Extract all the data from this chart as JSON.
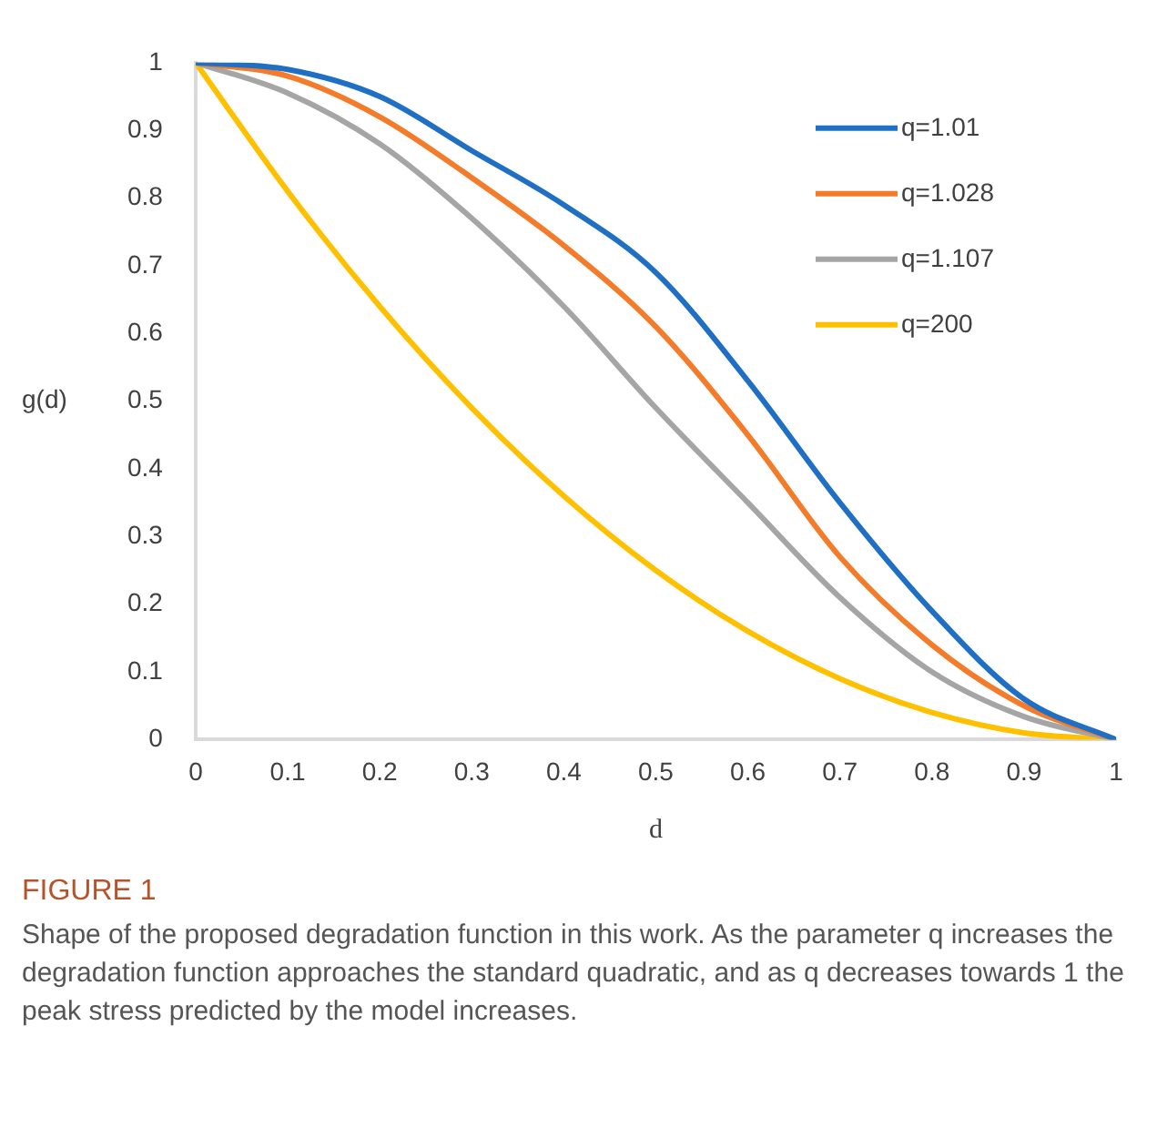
{
  "chart_data": {
    "type": "line",
    "xlabel": "d",
    "ylabel": "g(d)",
    "x": [
      0,
      0.1,
      0.2,
      0.3,
      0.4,
      0.5,
      0.6,
      0.7,
      0.8,
      0.9,
      1
    ],
    "series": [
      {
        "name": "q=1.01",
        "color": "#1f6fc5",
        "values": [
          1,
          0.99,
          0.95,
          0.87,
          0.79,
          0.69,
          0.53,
          0.35,
          0.19,
          0.06,
          0
        ]
      },
      {
        "name": "q=1.028",
        "color": "#f47b2a",
        "values": [
          1,
          0.98,
          0.92,
          0.83,
          0.73,
          0.61,
          0.45,
          0.27,
          0.14,
          0.05,
          0
        ]
      },
      {
        "name": "q=1.107",
        "color": "#a5a5a5",
        "values": [
          1,
          0.955,
          0.88,
          0.77,
          0.64,
          0.49,
          0.35,
          0.21,
          0.1,
          0.034,
          0
        ]
      },
      {
        "name": "q=200",
        "color": "#ffc000",
        "values": [
          1,
          0.81,
          0.64,
          0.49,
          0.36,
          0.25,
          0.16,
          0.09,
          0.04,
          0.01,
          0
        ]
      }
    ],
    "xlim": [
      0,
      1
    ],
    "xticks": [
      0,
      0.1,
      0.2,
      0.3,
      0.4,
      0.5,
      0.6,
      0.7,
      0.8,
      0.9,
      1
    ],
    "ylim": [
      0,
      1
    ],
    "yticks": [
      0,
      0.1,
      0.2,
      0.3,
      0.4,
      0.5,
      0.6,
      0.7,
      0.8,
      0.9,
      1
    ],
    "grid": false,
    "legend": "top right",
    "marker": "none",
    "line_style": "solid",
    "annotations": [
      "FIGURE 1",
      "Shape of the proposed degradation function in this work. As the parameter q increases the degradation function approaches the standard quadratic, and as q decreases towards 1 the peak stress predicted by the model increases."
    ]
  }
}
